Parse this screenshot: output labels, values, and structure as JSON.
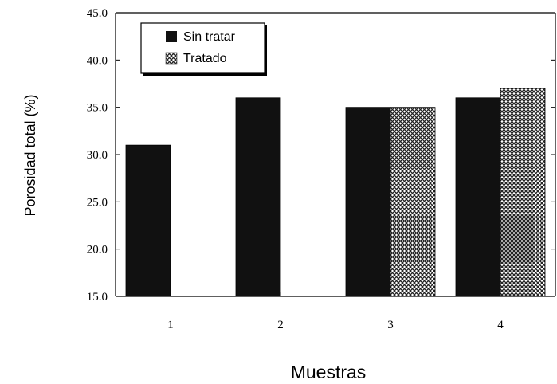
{
  "chart_data": {
    "type": "bar",
    "xlabel": "Muestras",
    "ylabel": "Porosidad total (%)",
    "categories": [
      "1",
      "2",
      "3",
      "4"
    ],
    "ylim": [
      15.0,
      45.0
    ],
    "yticks": [
      "15.0",
      "20.0",
      "25.0",
      "30.0",
      "35.0",
      "40.0",
      "45.0"
    ],
    "series": [
      {
        "name": "Sin tratar",
        "values": [
          31.0,
          36.0,
          35.0,
          36.0
        ],
        "color": "#111111",
        "pattern": "solid"
      },
      {
        "name": "Tratado",
        "values": [
          null,
          null,
          35.0,
          37.0
        ],
        "color": "#333333",
        "pattern": "crosshatch"
      }
    ],
    "legend_position": "top-left",
    "grid": false
  }
}
